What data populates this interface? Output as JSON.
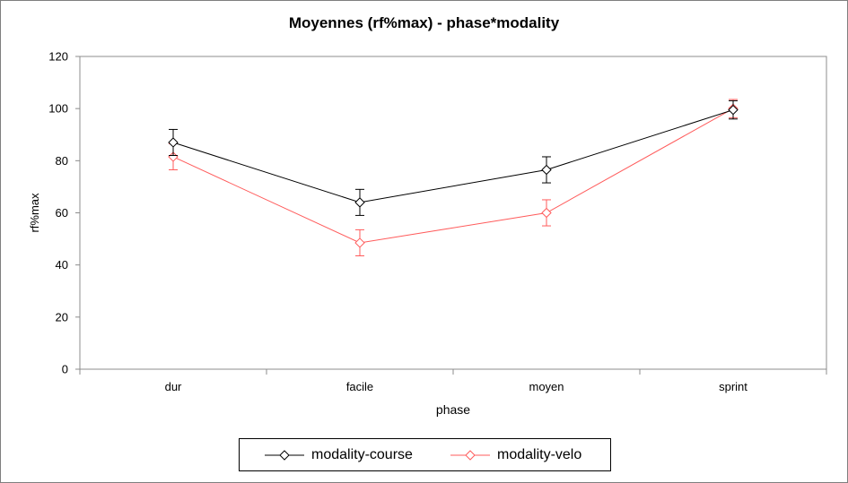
{
  "chart_data": {
    "type": "line",
    "title": "Moyennes (rf%max) - phase*modality",
    "xlabel": "phase",
    "ylabel": "rf%max",
    "categories": [
      "dur",
      "facile",
      "moyen",
      "sprint"
    ],
    "ylim": [
      0,
      120
    ],
    "yticks": [
      0,
      20,
      40,
      60,
      80,
      100,
      120
    ],
    "grid": false,
    "legend_position": "bottom",
    "series": [
      {
        "name": "modality-course",
        "color": "#000000",
        "marker": "diamond",
        "values": [
          87,
          64,
          76.5,
          99.5
        ],
        "error": [
          5,
          5,
          5,
          3.5
        ]
      },
      {
        "name": "modality-velo",
        "color": "#ff5b5b",
        "marker": "diamond",
        "values": [
          81.5,
          48.5,
          60,
          100
        ],
        "error": [
          5,
          5,
          5,
          3.5
        ]
      }
    ]
  }
}
